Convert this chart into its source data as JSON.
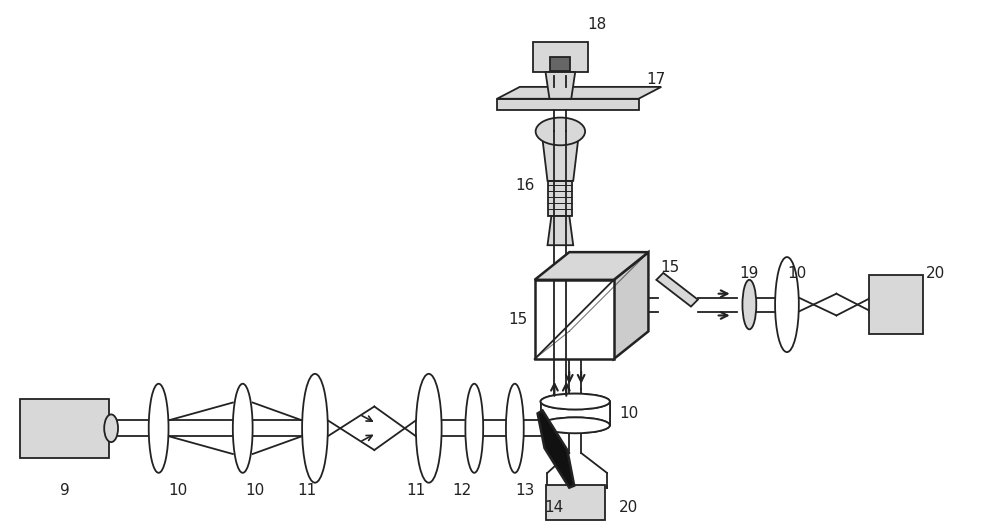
{
  "bg_color": "#ffffff",
  "line_color": "#222222",
  "gray_fill": "#d8d8d8",
  "dark_fill": "#666666",
  "black_fill": "#111111",
  "fig_width": 10.0,
  "fig_height": 5.3
}
